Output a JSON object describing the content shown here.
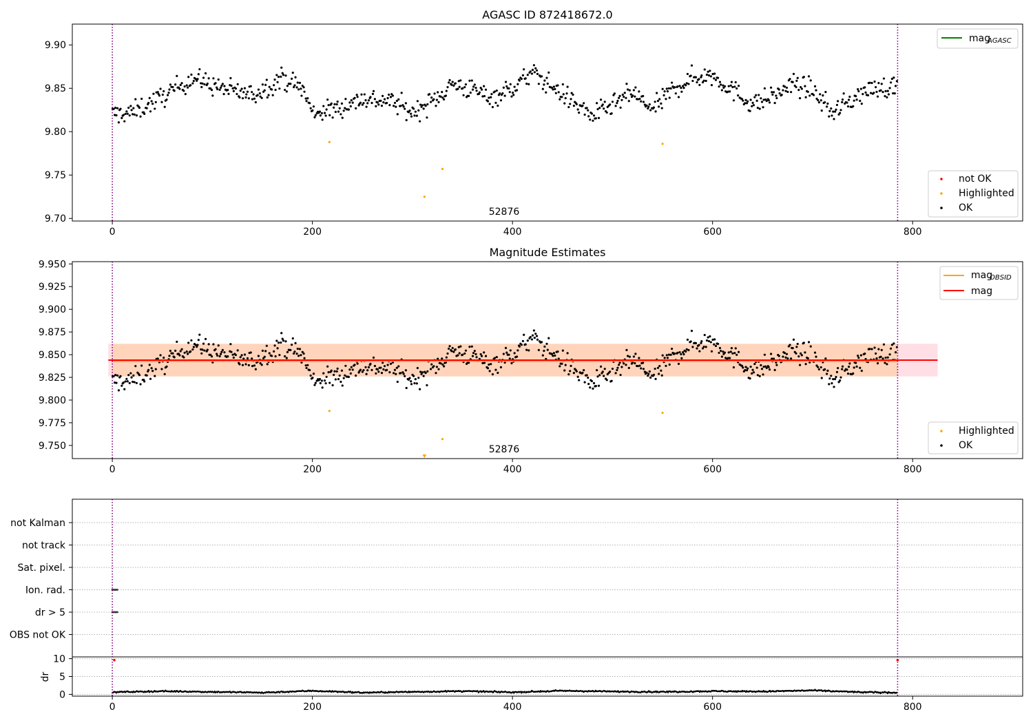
{
  "chart_data": [
    {
      "type": "scatter",
      "title": "AGASC ID 872418672.0",
      "xlim": [
        -40,
        910
      ],
      "ylim": [
        9.697,
        9.924
      ],
      "x_ticks": [
        0,
        200,
        400,
        600,
        800
      ],
      "y_ticks": [
        9.7,
        9.75,
        9.8,
        9.85,
        9.9
      ],
      "y_tick_labels": [
        "9.70",
        "9.75",
        "9.80",
        "9.85",
        "9.90"
      ],
      "vlines": [
        0,
        785
      ],
      "obsid_label": {
        "text": "52876",
        "x": 392,
        "y": 9.708
      },
      "series": [
        {
          "name": "not OK",
          "color": "#ff0000",
          "marker": "dot",
          "points": []
        },
        {
          "name": "Highlighted",
          "color": "#ffa500",
          "marker": "dot",
          "points": [
            [
              217,
              9.788
            ],
            [
              312,
              9.725
            ],
            [
              330,
              9.757
            ],
            [
              550,
              9.786
            ]
          ]
        },
        {
          "name": "OK",
          "color": "#000000",
          "marker": "dot",
          "generated": true
        }
      ],
      "legend_upper": {
        "placement": "upper right",
        "entries": [
          {
            "label": "mag",
            "sub": "AGASC",
            "color": "#008000"
          }
        ]
      },
      "legend_lower": {
        "placement": "lower right",
        "entries": [
          {
            "label": "not OK",
            "color": "#ff0000"
          },
          {
            "label": "Highlighted",
            "color": "#ffa500"
          },
          {
            "label": "OK",
            "color": "#000000"
          }
        ]
      },
      "ok_trend": {
        "x": [
          0,
          20,
          50,
          80,
          110,
          140,
          170,
          190,
          200,
          220,
          250,
          280,
          300,
          320,
          340,
          360,
          380,
          400,
          420,
          440,
          460,
          480,
          500,
          520,
          540,
          560,
          580,
          600,
          620,
          640,
          660,
          680,
          700,
          720,
          740,
          760,
          785
        ],
        "y": [
          9.82,
          9.822,
          9.84,
          9.862,
          9.85,
          9.842,
          9.862,
          9.85,
          9.822,
          9.825,
          9.838,
          9.835,
          9.822,
          9.835,
          9.855,
          9.848,
          9.84,
          9.85,
          9.868,
          9.852,
          9.835,
          9.818,
          9.83,
          9.845,
          9.825,
          9.848,
          9.862,
          9.865,
          9.848,
          9.832,
          9.84,
          9.855,
          9.848,
          9.822,
          9.838,
          9.85,
          9.852
        ]
      }
    },
    {
      "type": "scatter",
      "title": "Magnitude Estimates",
      "xlim": [
        -40,
        910
      ],
      "ylim": [
        9.7355,
        9.9525
      ],
      "x_ticks": [
        0,
        200,
        400,
        600,
        800
      ],
      "y_ticks": [
        9.75,
        9.775,
        9.8,
        9.825,
        9.85,
        9.875,
        9.9,
        9.925,
        9.95
      ],
      "y_tick_labels": [
        "9.750",
        "9.775",
        "9.800",
        "9.825",
        "9.850",
        "9.875",
        "9.900",
        "9.925",
        "9.950"
      ],
      "vlines": [
        0,
        785
      ],
      "obsid_label": {
        "text": "52876",
        "x": 392,
        "y": 9.744
      },
      "mag": 9.844,
      "mag_band": [
        9.826,
        9.862
      ],
      "mag_obsid": 9.843,
      "band_x": [
        0,
        825
      ],
      "series": [
        {
          "name": "Highlighted",
          "color": "#ffa500",
          "marker": "dot",
          "points": [
            [
              217,
              9.788
            ],
            [
              330,
              9.757
            ],
            [
              550,
              9.786
            ]
          ]
        },
        {
          "name": "OK",
          "color": "#000000",
          "marker": "dot",
          "generated": true
        }
      ],
      "clipped_marker": {
        "x": 312,
        "color": "#ffa500"
      },
      "legend_upper": {
        "placement": "upper right",
        "entries": [
          {
            "label": "mag",
            "sub": "OBSID",
            "color": "#ffa500"
          },
          {
            "label": "mag",
            "sub": "",
            "color": "#ff0000"
          }
        ]
      },
      "legend_lower": {
        "placement": "lower right",
        "entries": [
          {
            "label": "Highlighted",
            "color": "#ffa500"
          },
          {
            "label": "OK",
            "color": "#000000"
          }
        ]
      }
    },
    {
      "type": "scatter",
      "title": "",
      "xlim": [
        -40,
        910
      ],
      "x_ticks": [
        0,
        200,
        400,
        600,
        800
      ],
      "flag_rows": [
        "not Kalman",
        "not track",
        "Sat. pixel.",
        "Ion. rad.",
        "dr > 5",
        "OBS not OK"
      ],
      "flag_points": [
        {
          "row": "Ion. rad.",
          "x": [
            0,
            5
          ]
        },
        {
          "row": "dr > 5",
          "x": [
            0,
            5
          ]
        }
      ],
      "dr_panel": {
        "ylabel": "dr",
        "y_ticks": [
          0,
          5,
          10
        ],
        "ylim": [
          -0.5,
          10.5
        ],
        "trend": {
          "x": [
            0,
            50,
            100,
            150,
            200,
            250,
            300,
            350,
            400,
            450,
            500,
            550,
            600,
            650,
            700,
            750,
            785
          ],
          "y": [
            0.6,
            0.9,
            0.7,
            0.5,
            1.0,
            0.5,
            0.7,
            0.9,
            0.6,
            1.0,
            0.8,
            0.7,
            0.9,
            0.8,
            1.1,
            0.6,
            0.5
          ]
        },
        "red_marks": [
          [
            2,
            9.6
          ],
          [
            785,
            9.6
          ]
        ]
      },
      "vlines": [
        0,
        785
      ]
    }
  ]
}
